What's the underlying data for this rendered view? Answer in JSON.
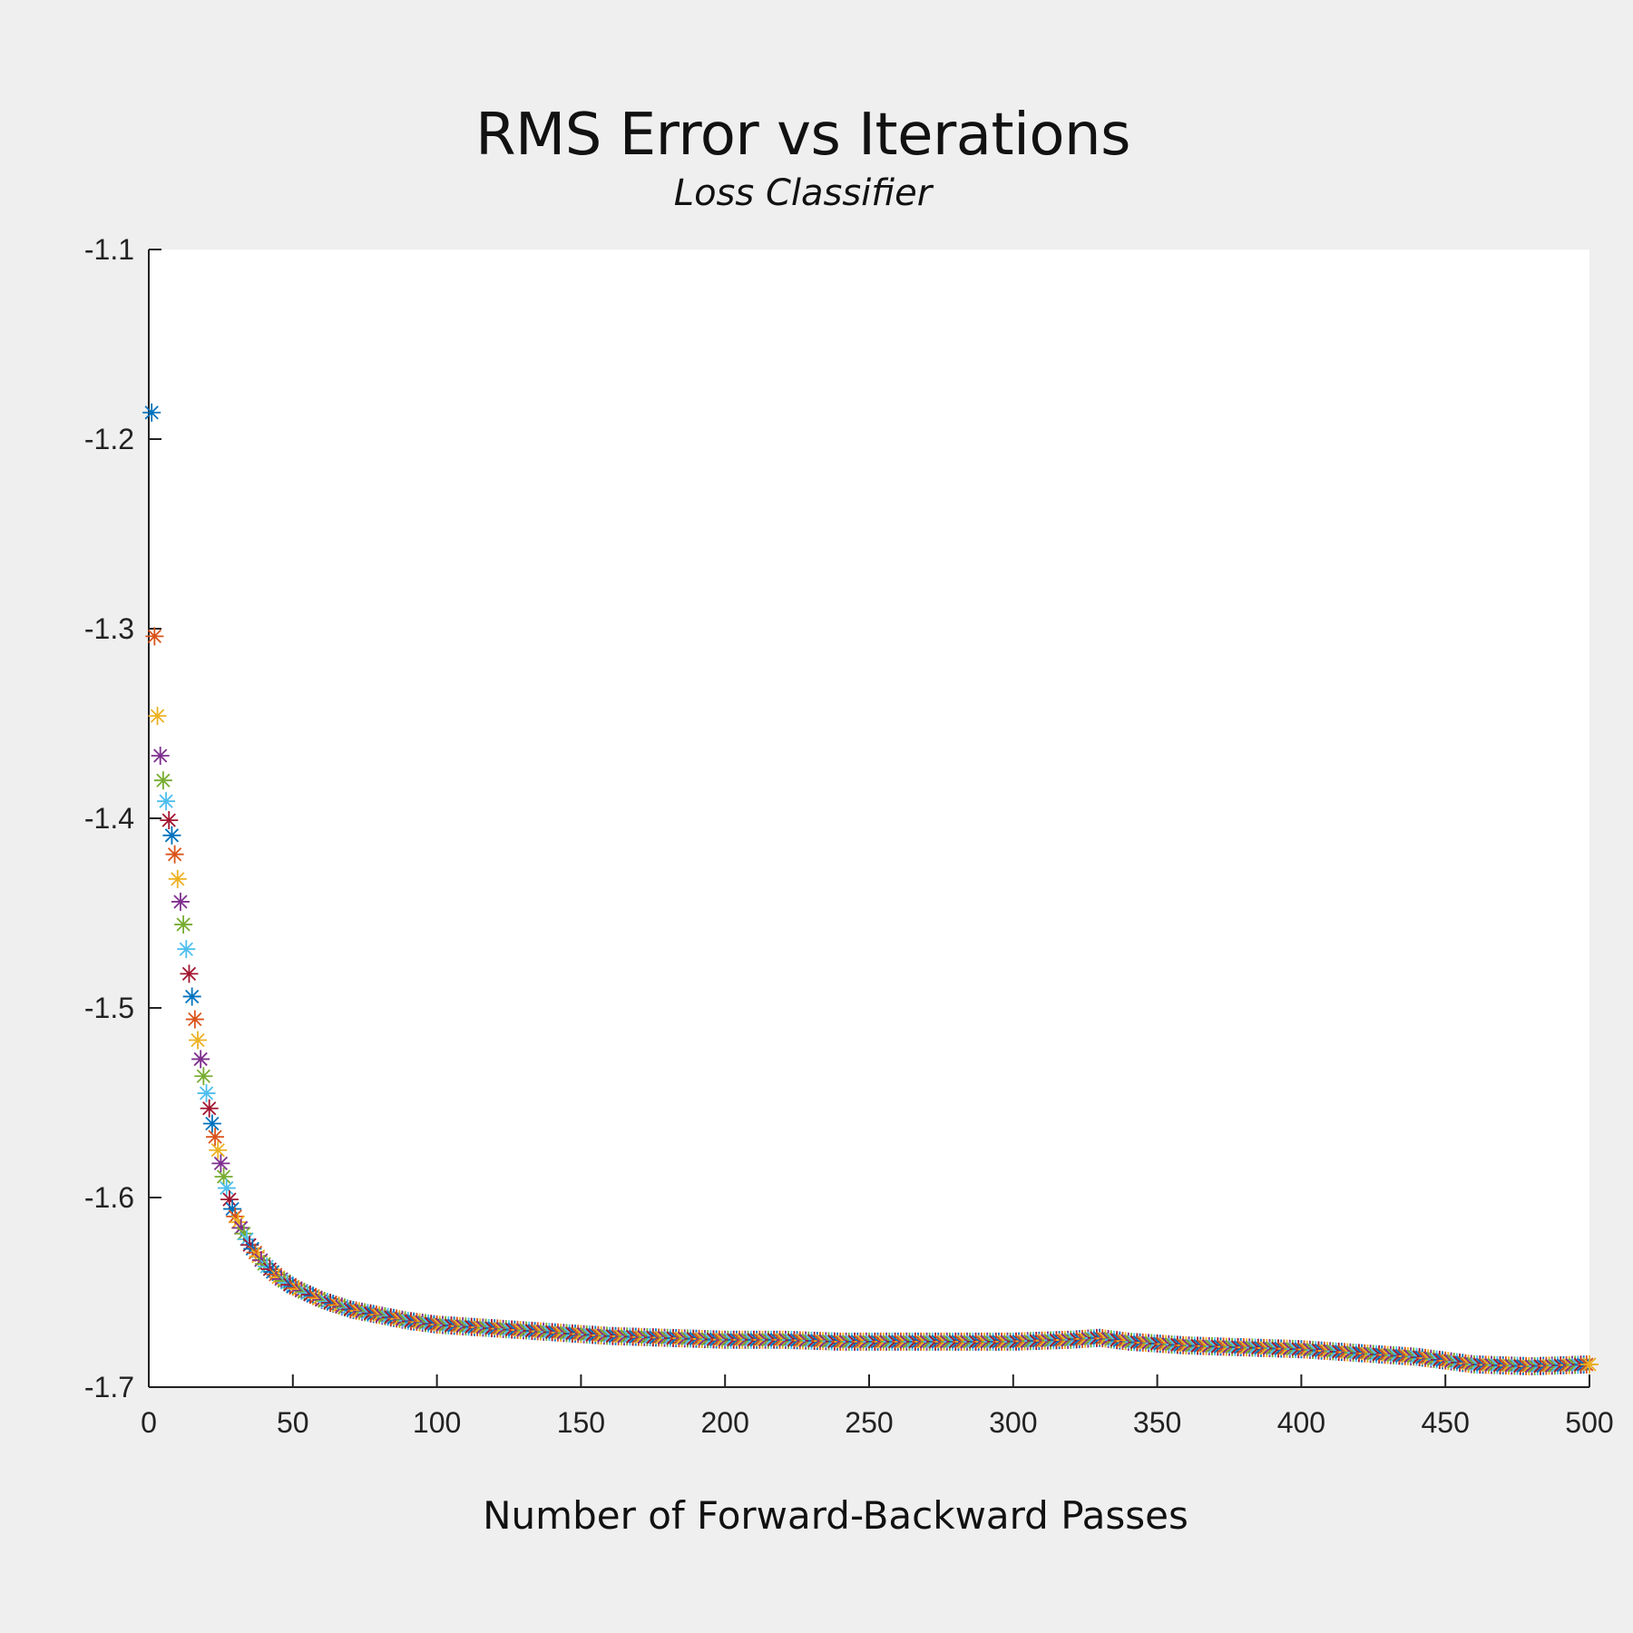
{
  "chart_data": {
    "type": "scatter",
    "title": "RMS Error vs Iterations",
    "subtitle": "Loss Classifier",
    "xlabel": "Number of Forward-Backward Passes",
    "ylabel": "",
    "xlim": [
      0,
      500
    ],
    "ylim": [
      -1.7,
      -1.1
    ],
    "xticks": [
      0,
      50,
      100,
      150,
      200,
      250,
      300,
      350,
      400,
      450,
      500
    ],
    "yticks": [
      -1.1,
      -1.2,
      -1.3,
      -1.4,
      -1.5,
      -1.6,
      -1.7
    ],
    "xtick_labels": [
      "0",
      "50",
      "100",
      "150",
      "200",
      "250",
      "300",
      "350",
      "400",
      "450",
      "500"
    ],
    "ytick_labels": [
      "-1.1",
      "-1.2",
      "-1.3",
      "-1.4",
      "-1.5",
      "-1.6",
      "-1.7"
    ],
    "grid": false,
    "legend": "none",
    "marker": "asterisk",
    "marker_colors": [
      "#0072BD",
      "#D95319",
      "#EDB120",
      "#7E2F8E",
      "#77AC30",
      "#4DBEEE",
      "#A2142F"
    ],
    "x": [
      1,
      2,
      3,
      4,
      5,
      6,
      7,
      8,
      9,
      10,
      11,
      12,
      13,
      14,
      15,
      16,
      17,
      18,
      19,
      20,
      21,
      22,
      23,
      24,
      25,
      26,
      27,
      28,
      29,
      30,
      35,
      40,
      45,
      50,
      60,
      70,
      80,
      90,
      100,
      120,
      140,
      160,
      180,
      200,
      220,
      240,
      260,
      280,
      300,
      320,
      330,
      340,
      360,
      380,
      400,
      420,
      440,
      460,
      480,
      500
    ],
    "y": [
      -1.186,
      -1.304,
      -1.346,
      -1.367,
      -1.38,
      -1.391,
      -1.401,
      -1.409,
      -1.419,
      -1.432,
      -1.444,
      -1.456,
      -1.469,
      -1.482,
      -1.494,
      -1.506,
      -1.517,
      -1.527,
      -1.536,
      -1.545,
      -1.553,
      -1.561,
      -1.568,
      -1.575,
      -1.582,
      -1.589,
      -1.595,
      -1.601,
      -1.606,
      -1.61,
      -1.625,
      -1.635,
      -1.642,
      -1.647,
      -1.654,
      -1.659,
      -1.662,
      -1.665,
      -1.667,
      -1.669,
      -1.671,
      -1.673,
      -1.674,
      -1.675,
      -1.675,
      -1.676,
      -1.676,
      -1.676,
      -1.676,
      -1.675,
      -1.674,
      -1.676,
      -1.678,
      -1.679,
      -1.68,
      -1.682,
      -1.684,
      -1.688,
      -1.689,
      -1.688
    ]
  }
}
